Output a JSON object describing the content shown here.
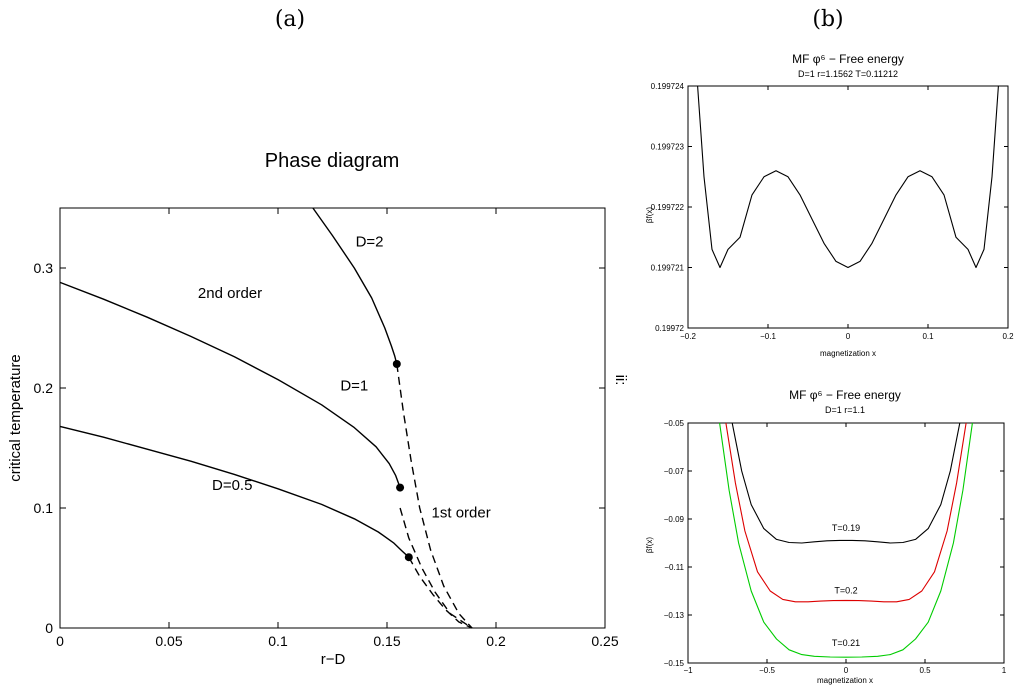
{
  "panel_labels": [
    "(a)",
    "(b)"
  ],
  "side_mark": "ii:",
  "chart_data": [
    {
      "id": "a",
      "type": "line",
      "title": "Phase diagram",
      "xlabel": "r−D",
      "ylabel": "critical temperature",
      "xlim": [
        0,
        0.25
      ],
      "ylim": [
        0,
        0.35
      ],
      "xticks": [
        0,
        0.05,
        0.1,
        0.15,
        0.2,
        0.25
      ],
      "xtick_labels": [
        "0",
        "0.05",
        "0.1",
        "0.15",
        "0.2",
        "0.25"
      ],
      "yticks": [
        0,
        0.1,
        0.2,
        0.3
      ],
      "ytick_labels": [
        "0",
        "0.1",
        "0.2",
        "0.3"
      ],
      "grid": false,
      "series": [
        {
          "name": "D=2",
          "style": "solid",
          "color": "#000000",
          "x": [
            0.116,
            0.125,
            0.135,
            0.143,
            0.149,
            0.152,
            0.1535,
            0.1545
          ],
          "y": [
            0.35,
            0.327,
            0.3,
            0.275,
            0.25,
            0.235,
            0.227,
            0.22
          ]
        },
        {
          "name": "D=1",
          "style": "solid",
          "color": "#000000",
          "x": [
            0,
            0.02,
            0.04,
            0.06,
            0.08,
            0.1,
            0.12,
            0.135,
            0.145,
            0.151,
            0.154,
            0.156
          ],
          "y": [
            0.288,
            0.274,
            0.259,
            0.243,
            0.226,
            0.207,
            0.186,
            0.167,
            0.151,
            0.137,
            0.127,
            0.117
          ]
        },
        {
          "name": "D=0.5",
          "style": "solid",
          "color": "#000000",
          "x": [
            0,
            0.02,
            0.04,
            0.06,
            0.08,
            0.1,
            0.12,
            0.135,
            0.146,
            0.153,
            0.157,
            0.16
          ],
          "y": [
            0.168,
            0.159,
            0.149,
            0.139,
            0.128,
            0.116,
            0.103,
            0.091,
            0.08,
            0.071,
            0.064,
            0.059
          ]
        },
        {
          "name": "",
          "style": "dashed",
          "color": "#000000",
          "x": [
            0.1545,
            0.1575,
            0.161,
            0.165,
            0.17,
            0.176,
            0.183,
            0.189
          ],
          "y": [
            0.22,
            0.18,
            0.14,
            0.1,
            0.065,
            0.035,
            0.012,
            0
          ]
        },
        {
          "name": "",
          "style": "dashed",
          "color": "#000000",
          "x": [
            0.156,
            0.16,
            0.166,
            0.172,
            0.179,
            0.189
          ],
          "y": [
            0.1,
            0.075,
            0.05,
            0.03,
            0.012,
            0
          ]
        },
        {
          "name": "",
          "style": "dashed",
          "color": "#000000",
          "x": [
            0.16,
            0.165,
            0.171,
            0.177,
            0.183,
            0.189
          ],
          "y": [
            0.059,
            0.043,
            0.028,
            0.015,
            0.005,
            0
          ]
        }
      ],
      "points": [
        {
          "x": 0.1545,
          "y": 0.22
        },
        {
          "x": 0.156,
          "y": 0.117
        },
        {
          "x": 0.16,
          "y": 0.059
        }
      ],
      "annotations": [
        {
          "text": "D=2",
          "x": 0.142,
          "y": 0.318
        },
        {
          "text": "2nd order",
          "x": 0.078,
          "y": 0.275
        },
        {
          "text": "D=1",
          "x": 0.135,
          "y": 0.198
        },
        {
          "text": "D=0.5",
          "x": 0.079,
          "y": 0.115
        },
        {
          "text": "1st order",
          "x": 0.184,
          "y": 0.092
        }
      ]
    },
    {
      "id": "b-top",
      "type": "line",
      "title": "MF φ⁶ − Free energy",
      "subtitle": "D=1 r=1.1562 T=0.11212",
      "xlabel": "magnetization x",
      "ylabel": "βf(x)",
      "xlim": [
        -0.2,
        0.2
      ],
      "ylim": [
        0.19972,
        0.199724
      ],
      "xticks": [
        -0.2,
        -0.1,
        0,
        0.1,
        0.2
      ],
      "xtick_labels": [
        "−0.2",
        "−0.1",
        "0",
        "0.1",
        "0.2"
      ],
      "yticks": [
        0.19972,
        0.199721,
        0.199722,
        0.199723,
        0.199724
      ],
      "ytick_labels": [
        "0.19972",
        "0.199721",
        "0.199722",
        "0.199723",
        "0.199724"
      ],
      "grid": false,
      "series": [
        {
          "name": "",
          "color": "#000000",
          "x": [
            -0.188,
            -0.18,
            -0.17,
            -0.16,
            -0.15,
            -0.135,
            -0.12,
            -0.105,
            -0.09,
            -0.075,
            -0.06,
            -0.045,
            -0.03,
            -0.015,
            0,
            0.015,
            0.03,
            0.045,
            0.06,
            0.075,
            0.09,
            0.105,
            0.12,
            0.135,
            0.15,
            0.16,
            0.17,
            0.18,
            0.188
          ],
          "y": [
            0.199724,
            0.1997225,
            0.1997213,
            0.199721,
            0.1997213,
            0.1997215,
            0.1997222,
            0.1997225,
            0.1997226,
            0.1997225,
            0.1997222,
            0.1997218,
            0.1997214,
            0.1997211,
            0.199721,
            0.1997211,
            0.1997214,
            0.1997218,
            0.1997222,
            0.1997225,
            0.1997226,
            0.1997225,
            0.1997222,
            0.1997215,
            0.1997213,
            0.199721,
            0.1997213,
            0.1997225,
            0.199724
          ]
        }
      ]
    },
    {
      "id": "b-bottom",
      "type": "line",
      "title": "MF φ⁶ − Free energy",
      "subtitle": "D=1 r=1.1",
      "xlabel": "magnetization x",
      "ylabel": "βf(x)",
      "xlim": [
        -1,
        1
      ],
      "ylim": [
        -0.15,
        -0.05
      ],
      "xticks": [
        -1,
        -0.5,
        0,
        0.5,
        1
      ],
      "xtick_labels": [
        "−1",
        "−0.5",
        "0",
        "0.5",
        "1"
      ],
      "yticks": [
        -0.15,
        -0.13,
        -0.11,
        -0.09,
        -0.07,
        -0.05
      ],
      "ytick_labels": [
        "−0.15",
        "−0.13",
        "−0.11",
        "−0.09",
        "−0.07",
        "−0.05"
      ],
      "grid": false,
      "series": [
        {
          "name": "T=0.19",
          "color": "#000000",
          "x": [
            -0.72,
            -0.66,
            -0.6,
            -0.52,
            -0.44,
            -0.36,
            -0.28,
            -0.2,
            -0.12,
            -0.04,
            0,
            0.04,
            0.12,
            0.2,
            0.28,
            0.36,
            0.44,
            0.52,
            0.6,
            0.66,
            0.72
          ],
          "y": [
            -0.05,
            -0.07,
            -0.084,
            -0.094,
            -0.0985,
            -0.0998,
            -0.1,
            -0.0995,
            -0.0991,
            -0.0989,
            -0.0989,
            -0.0989,
            -0.0991,
            -0.0995,
            -0.1,
            -0.0998,
            -0.0985,
            -0.094,
            -0.084,
            -0.07,
            -0.05
          ]
        },
        {
          "name": "T=0.2",
          "color": "#dd0000",
          "x": [
            -0.76,
            -0.7,
            -0.64,
            -0.56,
            -0.48,
            -0.4,
            -0.32,
            -0.24,
            -0.16,
            -0.08,
            0,
            0.08,
            0.16,
            0.24,
            0.32,
            0.4,
            0.48,
            0.56,
            0.64,
            0.7,
            0.76
          ],
          "y": [
            -0.05,
            -0.075,
            -0.095,
            -0.112,
            -0.12,
            -0.1235,
            -0.1245,
            -0.1245,
            -0.1242,
            -0.124,
            -0.1239,
            -0.124,
            -0.1242,
            -0.1245,
            -0.1245,
            -0.1235,
            -0.12,
            -0.112,
            -0.095,
            -0.075,
            -0.05
          ]
        },
        {
          "name": "T=0.21",
          "color": "#00cc00",
          "x": [
            -0.8,
            -0.74,
            -0.68,
            -0.6,
            -0.52,
            -0.44,
            -0.36,
            -0.28,
            -0.2,
            -0.1,
            0,
            0.1,
            0.2,
            0.28,
            0.36,
            0.44,
            0.52,
            0.6,
            0.68,
            0.74,
            0.8
          ],
          "y": [
            -0.05,
            -0.078,
            -0.1,
            -0.12,
            -0.133,
            -0.14,
            -0.1445,
            -0.1465,
            -0.1472,
            -0.1475,
            -0.1476,
            -0.1475,
            -0.1472,
            -0.1465,
            -0.1445,
            -0.14,
            -0.133,
            -0.12,
            -0.1,
            -0.078,
            -0.05
          ]
        }
      ],
      "annotations": [
        {
          "text": "T=0.19",
          "x": 0,
          "y": -0.095
        },
        {
          "text": "T=0.2",
          "x": 0,
          "y": -0.121
        },
        {
          "text": "T=0.21",
          "x": 0,
          "y": -0.143
        }
      ]
    }
  ]
}
